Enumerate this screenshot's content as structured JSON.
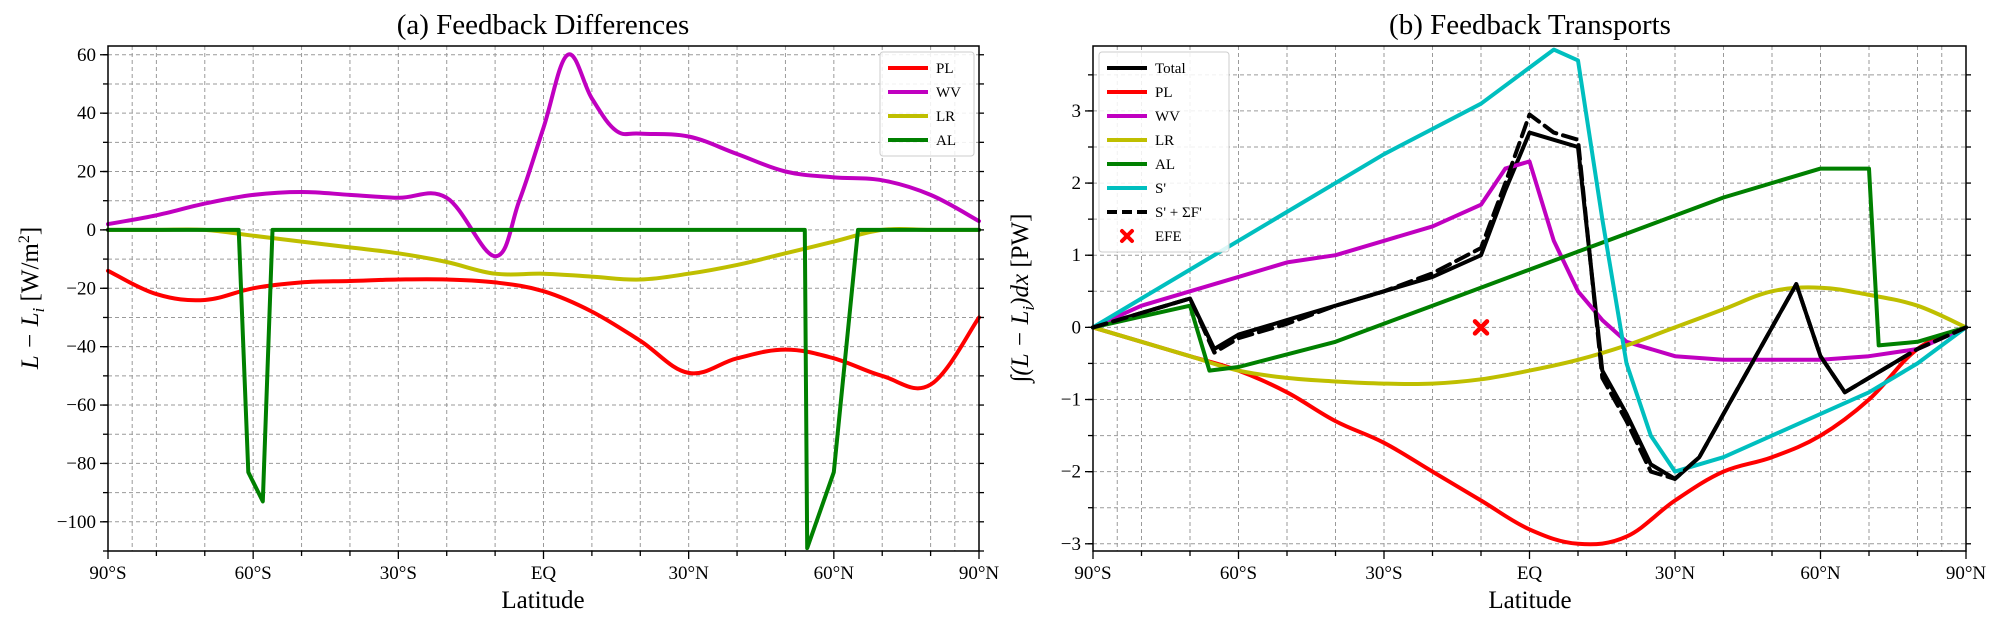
{
  "chart_data": [
    {
      "type": "line",
      "title": "(a) Feedback Differences",
      "xlabel": "Latitude",
      "ylabel": "$L - L_i$ [W/m$^2$]",
      "ylabel_parts": {
        "main": "L − L",
        "sub": "i",
        "unit": " [W/m",
        "sup": "2",
        "close": "]"
      },
      "xlim": [
        -90,
        90
      ],
      "ylim": [
        -110,
        63
      ],
      "xticks": [
        -90,
        -60,
        -30,
        0,
        30,
        60,
        90
      ],
      "xticklabels": [
        "90°S",
        "60°S",
        "30°S",
        "EQ",
        "30°N",
        "60°N",
        "90°N"
      ],
      "yticks": [
        -100,
        -80,
        -60,
        -40,
        -20,
        0,
        20,
        40,
        60
      ],
      "yticklabels": [
        "−100",
        "−80",
        "−60",
        "−40",
        "−20",
        "0",
        "20",
        "40",
        "60"
      ],
      "grid": true,
      "legend_position": "top-right",
      "series": [
        {
          "name": "PL",
          "color": "#ff0000",
          "x": [
            -90,
            -80,
            -70,
            -60,
            -50,
            -40,
            -30,
            -20,
            -10,
            0,
            10,
            20,
            30,
            40,
            50,
            60,
            70,
            80,
            90
          ],
          "y": [
            -14,
            -22,
            -24,
            -20,
            -18,
            -17.5,
            -17,
            -17,
            -18,
            -21,
            -28,
            -38,
            -49,
            -44,
            -41,
            -44,
            -50,
            -53,
            -30
          ]
        },
        {
          "name": "WV",
          "color": "#c000c0",
          "x": [
            -90,
            -80,
            -70,
            -60,
            -50,
            -40,
            -30,
            -20,
            -10,
            -5,
            0,
            5,
            10,
            15,
            20,
            30,
            40,
            50,
            60,
            70,
            80,
            90
          ],
          "y": [
            2,
            5,
            9,
            12,
            13,
            12,
            11,
            11,
            -9,
            10,
            35,
            60,
            45,
            34,
            33,
            32,
            26,
            20,
            18,
            17,
            12,
            3
          ]
        },
        {
          "name": "LR",
          "color": "#bfbf00",
          "x": [
            -90,
            -80,
            -70,
            -60,
            -50,
            -40,
            -30,
            -20,
            -10,
            0,
            10,
            20,
            30,
            40,
            50,
            60,
            70,
            80,
            90
          ],
          "y": [
            0,
            0,
            0,
            -2,
            -4,
            -6,
            -8,
            -11,
            -15,
            -15,
            -16,
            -17,
            -15,
            -12,
            -8,
            -4,
            0,
            0,
            0
          ]
        },
        {
          "name": "AL",
          "color": "#008000",
          "x": [
            -90,
            -63,
            -61,
            -58,
            -56,
            -40,
            -20,
            0,
            20,
            40,
            50,
            54,
            54.5,
            60,
            65,
            66,
            90
          ],
          "y": [
            0,
            0,
            -83,
            -93,
            0,
            0,
            0,
            0,
            0,
            0,
            0,
            0,
            -109,
            -83,
            0,
            0,
            0
          ]
        }
      ]
    },
    {
      "type": "line",
      "title": "(b) Feedback Transports",
      "xlabel": "Latitude",
      "ylabel": "$\\int(L - L_i)dx$ [PW]",
      "ylabel_parts": {
        "main": "∫(L − L",
        "sub": "i",
        "tail": ")dx",
        "unit": " [PW]"
      },
      "xlim": [
        -90,
        90
      ],
      "ylim": [
        -3.1,
        3.9
      ],
      "xticks": [
        -90,
        -60,
        -30,
        0,
        30,
        60,
        90
      ],
      "xticklabels": [
        "90°S",
        "60°S",
        "30°S",
        "EQ",
        "30°N",
        "60°N",
        "90°N"
      ],
      "yticks": [
        -3,
        -2,
        -1,
        0,
        1,
        2,
        3
      ],
      "yticklabels": [
        "−3",
        "−2",
        "−1",
        "0",
        "1",
        "2",
        "3"
      ],
      "grid": true,
      "legend_position": "top-left",
      "series": [
        {
          "name": "Total",
          "color": "#000000",
          "style": "solid",
          "x": [
            -90,
            -70,
            -65,
            -60,
            -50,
            -40,
            -30,
            -20,
            -10,
            -5,
            0,
            5,
            10,
            15,
            20,
            25,
            30,
            35,
            40,
            45,
            50,
            55,
            60,
            65,
            70,
            80,
            90
          ],
          "y": [
            0,
            0.4,
            -0.3,
            -0.1,
            0.1,
            0.3,
            0.5,
            0.7,
            1.0,
            1.9,
            2.7,
            2.6,
            2.5,
            -0.6,
            -1.2,
            -1.9,
            -2.1,
            -1.8,
            -1.2,
            -0.6,
            0,
            0.6,
            -0.4,
            -0.9,
            -0.7,
            -0.3,
            0
          ]
        },
        {
          "name": "PL",
          "color": "#ff0000",
          "style": "solid",
          "x": [
            -90,
            -80,
            -70,
            -60,
            -50,
            -40,
            -30,
            -20,
            -10,
            0,
            10,
            20,
            30,
            40,
            50,
            60,
            70,
            80,
            90
          ],
          "y": [
            0,
            -0.2,
            -0.4,
            -0.6,
            -0.9,
            -1.3,
            -1.6,
            -2.0,
            -2.4,
            -2.8,
            -3.0,
            -2.9,
            -2.4,
            -2.0,
            -1.8,
            -1.5,
            -1.0,
            -0.3,
            0
          ]
        },
        {
          "name": "WV",
          "color": "#c000c0",
          "style": "solid",
          "x": [
            -90,
            -80,
            -70,
            -60,
            -50,
            -40,
            -30,
            -20,
            -10,
            -5,
            0,
            5,
            10,
            15,
            20,
            30,
            40,
            50,
            60,
            70,
            80,
            90
          ],
          "y": [
            0,
            0.3,
            0.5,
            0.7,
            0.9,
            1.0,
            1.2,
            1.4,
            1.7,
            2.2,
            2.3,
            1.2,
            0.5,
            0.1,
            -0.2,
            -0.4,
            -0.45,
            -0.45,
            -0.45,
            -0.4,
            -0.3,
            0
          ]
        },
        {
          "name": "LR",
          "color": "#bfbf00",
          "style": "solid",
          "x": [
            -90,
            -80,
            -70,
            -60,
            -50,
            -40,
            -30,
            -20,
            -10,
            0,
            10,
            20,
            30,
            40,
            50,
            60,
            70,
            80,
            90
          ],
          "y": [
            0,
            -0.2,
            -0.4,
            -0.6,
            -0.7,
            -0.75,
            -0.78,
            -0.78,
            -0.72,
            -0.6,
            -0.45,
            -0.25,
            0,
            0.25,
            0.5,
            0.55,
            0.45,
            0.3,
            0
          ]
        },
        {
          "name": "AL",
          "color": "#008000",
          "style": "solid",
          "x": [
            -90,
            -70,
            -66,
            -60,
            -40,
            -20,
            0,
            20,
            40,
            60,
            70,
            72,
            80,
            90
          ],
          "y": [
            0,
            0.3,
            -0.6,
            -0.55,
            -0.2,
            0.3,
            0.8,
            1.3,
            1.8,
            2.2,
            2.2,
            -0.25,
            -0.2,
            0
          ]
        },
        {
          "name": "S'",
          "color": "#00bfbf",
          "style": "solid",
          "x": [
            -90,
            -70,
            -50,
            -30,
            -10,
            0,
            5,
            10,
            15,
            20,
            25,
            30,
            40,
            50,
            60,
            70,
            80,
            90
          ],
          "y": [
            0,
            0.8,
            1.6,
            2.4,
            3.1,
            3.6,
            3.85,
            3.7,
            1.5,
            -0.5,
            -1.5,
            -2.0,
            -1.8,
            -1.5,
            -1.2,
            -0.9,
            -0.5,
            0
          ]
        },
        {
          "name": "S' + ΣF'",
          "color": "#000000",
          "style": "dashed",
          "x": [
            -90,
            -70,
            -65,
            -60,
            -50,
            -40,
            -30,
            -20,
            -10,
            -5,
            0,
            5,
            10,
            15,
            20,
            25,
            30,
            35,
            40,
            45,
            50,
            55,
            60,
            65,
            70,
            80,
            90
          ],
          "y": [
            0,
            0.4,
            -0.35,
            -0.15,
            0.05,
            0.3,
            0.5,
            0.75,
            1.1,
            2.0,
            2.95,
            2.7,
            2.6,
            -0.7,
            -1.3,
            -2.0,
            -2.1,
            -1.8,
            -1.2,
            -0.6,
            0,
            0.6,
            -0.4,
            -0.9,
            -0.7,
            -0.3,
            0
          ]
        }
      ],
      "markers": [
        {
          "name": "EFE",
          "color": "#ff0000",
          "symbol": "X",
          "x": -10,
          "y": 0
        }
      ]
    }
  ]
}
